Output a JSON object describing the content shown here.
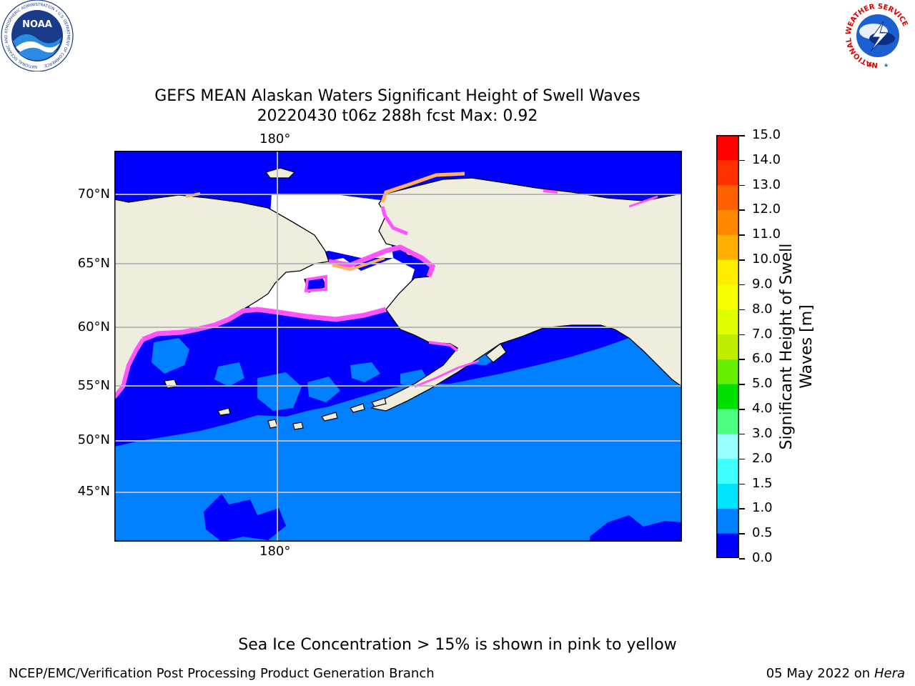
{
  "title_line1": "GEFS MEAN Alaskan Waters Significant Height of Swell Waves",
  "title_line2": "20220430 t06z 288h fcst    Max: 0.92",
  "map": {
    "lon_labels_top": [
      "180°"
    ],
    "lon_labels_bottom": [
      "180°"
    ],
    "lat_labels": [
      "70°N",
      "65°N",
      "60°N",
      "55°N",
      "50°N",
      "45°N"
    ],
    "colors": {
      "land": "#efedde",
      "ocean_low": "#0000ff",
      "ocean_mid": "#0080ff",
      "ice_pink": "#ff66ff",
      "ice_orange": "#ffb060",
      "grid": "#b8b8b8",
      "coast": "#000000"
    }
  },
  "colorbar": {
    "title_line1": "Significant Height of Swell",
    "title_line2": "Waves [m]",
    "ticks": [
      "15.0",
      "14.0",
      "13.0",
      "12.0",
      "11.0",
      "10.0",
      "9.0",
      "8.0",
      "7.0",
      "6.0",
      "5.0",
      "4.0",
      "3.0",
      "2.0",
      "1.5",
      "1.0",
      "0.5",
      "0.0"
    ],
    "bin_colors_bottom_to_top": [
      "#0000ff",
      "#0080ff",
      "#00e5ff",
      "#40ffff",
      "#99ffff",
      "#4dff80",
      "#00e000",
      "#66ee00",
      "#bfee00",
      "#dfff00",
      "#f5ff00",
      "#ffee00",
      "#ffb000",
      "#ff8800",
      "#ff6000",
      "#ff3000",
      "#ff0000"
    ]
  },
  "note": "Sea Ice Concentration > 15% is shown in pink to yellow",
  "footer": {
    "left": "NCEP/EMC/Verification Post Processing Product Generation Branch",
    "right_date": "05 May 2022 on",
    "right_machine": "Hera"
  },
  "logos": {
    "noaa": {
      "text": "NOAA",
      "ring_text": "NATIONAL OCEANIC AND ATMOSPHERIC ADMINISTRATION • U.S. DEPARTMENT OF COMMERCE"
    },
    "nws": {
      "ring_text": "NATIONAL WEATHER SERVICE"
    }
  }
}
